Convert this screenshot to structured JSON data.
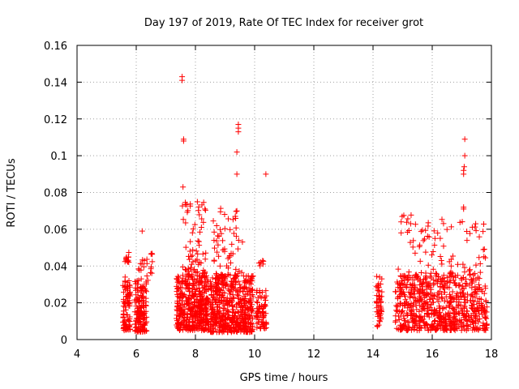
{
  "chart_data": {
    "type": "scatter",
    "title": "Day 197 of 2019, Rate Of TEC Index for receiver grot",
    "xlabel": "GPS time / hours",
    "ylabel": "ROTI / TECUs",
    "xlim": [
      4,
      18
    ],
    "ylim": [
      0,
      0.16
    ],
    "xticks": [
      4,
      6,
      8,
      10,
      12,
      14,
      16,
      18
    ],
    "yticks": [
      0,
      0.02,
      0.04,
      0.06,
      0.08,
      0.1,
      0.12,
      0.14,
      0.16
    ],
    "ytick_labels": [
      "0",
      "0.02",
      "0.04",
      "0.06",
      "0.08",
      "0.1",
      "0.12",
      "0.14",
      "0.16"
    ],
    "grid": true,
    "legend": "none",
    "marker": "+",
    "color": "#ff0000",
    "clusters": [
      {
        "x_range": [
          5.55,
          5.8
        ],
        "y_range": [
          0.005,
          0.034
        ],
        "n": 90
      },
      {
        "x_range": [
          5.6,
          5.75
        ],
        "y_range": [
          0.042,
          0.05
        ],
        "n": 12
      },
      {
        "x_range": [
          5.95,
          6.35
        ],
        "y_range": [
          0.004,
          0.032
        ],
        "n": 140
      },
      {
        "x_range": [
          6.05,
          6.4
        ],
        "y_range": [
          0.032,
          0.045
        ],
        "n": 14
      },
      {
        "x_range": [
          6.45,
          6.55
        ],
        "y_range": [
          0.036,
          0.05
        ],
        "n": 8
      },
      {
        "x_range": [
          7.35,
          8.45
        ],
        "y_range": [
          0.005,
          0.035
        ],
        "n": 420
      },
      {
        "x_range": [
          7.55,
          8.35
        ],
        "y_range": [
          0.035,
          0.075
        ],
        "n": 70
      },
      {
        "x_range": [
          8.5,
          9.95
        ],
        "y_range": [
          0.004,
          0.035
        ],
        "n": 520
      },
      {
        "x_range": [
          8.6,
          9.6
        ],
        "y_range": [
          0.035,
          0.072
        ],
        "n": 60
      },
      {
        "x_range": [
          10.05,
          10.4
        ],
        "y_range": [
          0.006,
          0.027
        ],
        "n": 70
      },
      {
        "x_range": [
          10.1,
          10.3
        ],
        "y_range": [
          0.04,
          0.044
        ],
        "n": 6
      },
      {
        "x_range": [
          14.1,
          14.3
        ],
        "y_range": [
          0.007,
          0.035
        ],
        "n": 50
      },
      {
        "x_range": [
          14.75,
          17.85
        ],
        "y_range": [
          0.005,
          0.035
        ],
        "n": 700
      },
      {
        "x_range": [
          14.8,
          17.8
        ],
        "y_range": [
          0.035,
          0.068
        ],
        "n": 90
      }
    ],
    "outliers": [
      {
        "x": 7.55,
        "y": 0.143
      },
      {
        "x": 7.55,
        "y": 0.141
      },
      {
        "x": 7.6,
        "y": 0.109
      },
      {
        "x": 7.6,
        "y": 0.108
      },
      {
        "x": 7.58,
        "y": 0.083
      },
      {
        "x": 9.45,
        "y": 0.117
      },
      {
        "x": 9.45,
        "y": 0.115
      },
      {
        "x": 9.45,
        "y": 0.113
      },
      {
        "x": 9.4,
        "y": 0.102
      },
      {
        "x": 9.4,
        "y": 0.09
      },
      {
        "x": 9.4,
        "y": 0.07
      },
      {
        "x": 10.38,
        "y": 0.09
      },
      {
        "x": 6.2,
        "y": 0.059
      },
      {
        "x": 14.95,
        "y": 0.064
      },
      {
        "x": 14.95,
        "y": 0.058
      },
      {
        "x": 17.1,
        "y": 0.109
      },
      {
        "x": 17.1,
        "y": 0.1
      },
      {
        "x": 17.08,
        "y": 0.094
      },
      {
        "x": 17.06,
        "y": 0.092
      },
      {
        "x": 17.06,
        "y": 0.09
      },
      {
        "x": 17.06,
        "y": 0.072
      },
      {
        "x": 17.06,
        "y": 0.071
      }
    ]
  }
}
